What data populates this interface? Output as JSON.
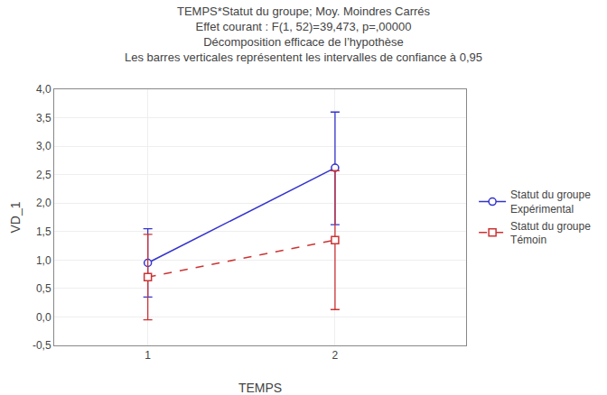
{
  "chart_data": {
    "type": "line",
    "title": "TEMPS*Statut du groupe; Moy. Moindres Carrés\nEffet courant : F(1, 52)=39,473, p=,00000\nDécomposition efficace de l’hypothèse\nLes barres verticales représentent les intervalles de confiance à 0,95",
    "x_label": "TEMPS",
    "y_label": "VD_1",
    "x": [
      1,
      2
    ],
    "series": [
      {
        "name": "Statut du groupe\nExpérimental",
        "color": "#3333CC",
        "marker": "circle",
        "line_style": "solid",
        "values": [
          0.95,
          2.62
        ],
        "error_low": [
          0.6,
          1.0
        ],
        "error_high": [
          0.6,
          0.98
        ]
      },
      {
        "name": "Statut du groupe\nTémoin",
        "color": "#CC3333",
        "marker": "square",
        "line_style": "dash",
        "values": [
          0.7,
          1.35
        ],
        "error_low": [
          0.75,
          1.22
        ],
        "error_high": [
          0.75,
          1.22
        ]
      }
    ],
    "xlim": [
      0.5,
      2.7
    ],
    "xticks": [
      1,
      2
    ],
    "ylim": [
      -0.5,
      4.0
    ],
    "yticks": [
      {
        "value": -0.5,
        "label": "-0,5"
      },
      {
        "value": 0.0,
        "label": "0,0"
      },
      {
        "value": 0.5,
        "label": "0,5"
      },
      {
        "value": 1.0,
        "label": "1,0"
      },
      {
        "value": 1.5,
        "label": "1,5"
      },
      {
        "value": 2.0,
        "label": "2,0"
      },
      {
        "value": 2.5,
        "label": "2,5"
      },
      {
        "value": 3.0,
        "label": "3,0"
      },
      {
        "value": 3.5,
        "label": "3,5"
      },
      {
        "value": 4.0,
        "label": "4,0"
      }
    ],
    "grid": true,
    "legend": "right"
  }
}
